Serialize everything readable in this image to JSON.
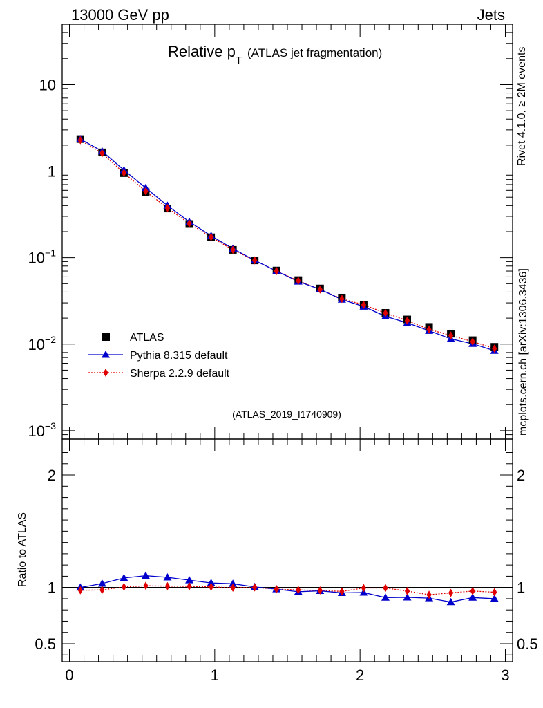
{
  "header": {
    "left_label": "13000 GeV pp",
    "right_label": "Jets"
  },
  "side_labels": {
    "top": "Rivet 4.1.0, ≥ 2M events",
    "bottom": "mcplots.cern.ch [arXiv:1306.3436]"
  },
  "chart_data": {
    "type": "line",
    "title_main": "Relative p",
    "title_sub": "T",
    "title_rest": "(ATLAS jet fragmentation)",
    "analysis_id": "(ATLAS_2019_I1740909)",
    "x_axis": {
      "range": [
        -0.05,
        3.05
      ],
      "ticks": [
        0,
        1,
        2,
        3
      ],
      "tick_labels": [
        "0",
        "1",
        "2",
        "3"
      ]
    },
    "main_panel": {
      "yscale": "log",
      "ylim": [
        0.0008,
        50
      ],
      "tick_labels": [
        {
          "value": 10,
          "base": "10",
          "exp": ""
        },
        {
          "value": 1,
          "base": "1",
          "exp": ""
        },
        {
          "value": 0.1,
          "base": "10",
          "exp": "−1"
        },
        {
          "value": 0.01,
          "base": "10",
          "exp": "−2"
        },
        {
          "value": 0.001,
          "base": "10",
          "exp": "−3"
        }
      ]
    },
    "ratio_panel": {
      "ylabel": "Ratio to ATLAS",
      "ylim": [
        0.34,
        2.32
      ],
      "ticks": [
        0.5,
        1,
        2
      ],
      "tick_labels": [
        "0.5",
        "1",
        "2"
      ]
    },
    "x": [
      0.075,
      0.225,
      0.375,
      0.525,
      0.675,
      0.825,
      0.975,
      1.125,
      1.275,
      1.425,
      1.575,
      1.725,
      1.875,
      2.025,
      2.175,
      2.325,
      2.475,
      2.625,
      2.775,
      2.925
    ],
    "series": [
      {
        "name": "ATLAS",
        "marker": "square",
        "color": "#000000",
        "values": [
          2.35,
          1.65,
          0.95,
          0.57,
          0.37,
          0.245,
          0.172,
          0.123,
          0.093,
          0.071,
          0.055,
          0.044,
          0.0345,
          0.0285,
          0.023,
          0.0193,
          0.0158,
          0.0132,
          0.0111,
          0.0093
        ]
      },
      {
        "name": "Pythia 8.315 default",
        "marker": "triangle",
        "color": "#0000cc",
        "values": [
          2.35,
          1.7,
          1.03,
          0.64,
          0.4,
          0.26,
          0.179,
          0.127,
          0.093,
          0.07,
          0.053,
          0.043,
          0.0328,
          0.0272,
          0.021,
          0.0176,
          0.0143,
          0.0115,
          0.0101,
          0.0084
        ],
        "ratio": [
          1.0,
          1.035,
          1.085,
          1.105,
          1.09,
          1.065,
          1.04,
          1.033,
          1.005,
          0.985,
          0.962,
          0.97,
          0.952,
          0.955,
          0.91,
          0.912,
          0.905,
          0.87,
          0.91,
          0.9
        ]
      },
      {
        "name": "Sherpa 2.2.9 default",
        "marker": "diamond",
        "color": "#e00000",
        "values": [
          2.28,
          1.61,
          0.955,
          0.585,
          0.375,
          0.248,
          0.173,
          0.123,
          0.093,
          0.07,
          0.054,
          0.0428,
          0.0334,
          0.0285,
          0.0229,
          0.0187,
          0.0148,
          0.0126,
          0.0107,
          0.0089
        ],
        "ratio": [
          0.975,
          0.978,
          1.005,
          1.015,
          1.012,
          1.01,
          1.005,
          0.998,
          1.0,
          0.985,
          0.978,
          0.973,
          0.965,
          0.995,
          0.995,
          0.968,
          0.935,
          0.952,
          0.968,
          0.958
        ]
      }
    ]
  }
}
